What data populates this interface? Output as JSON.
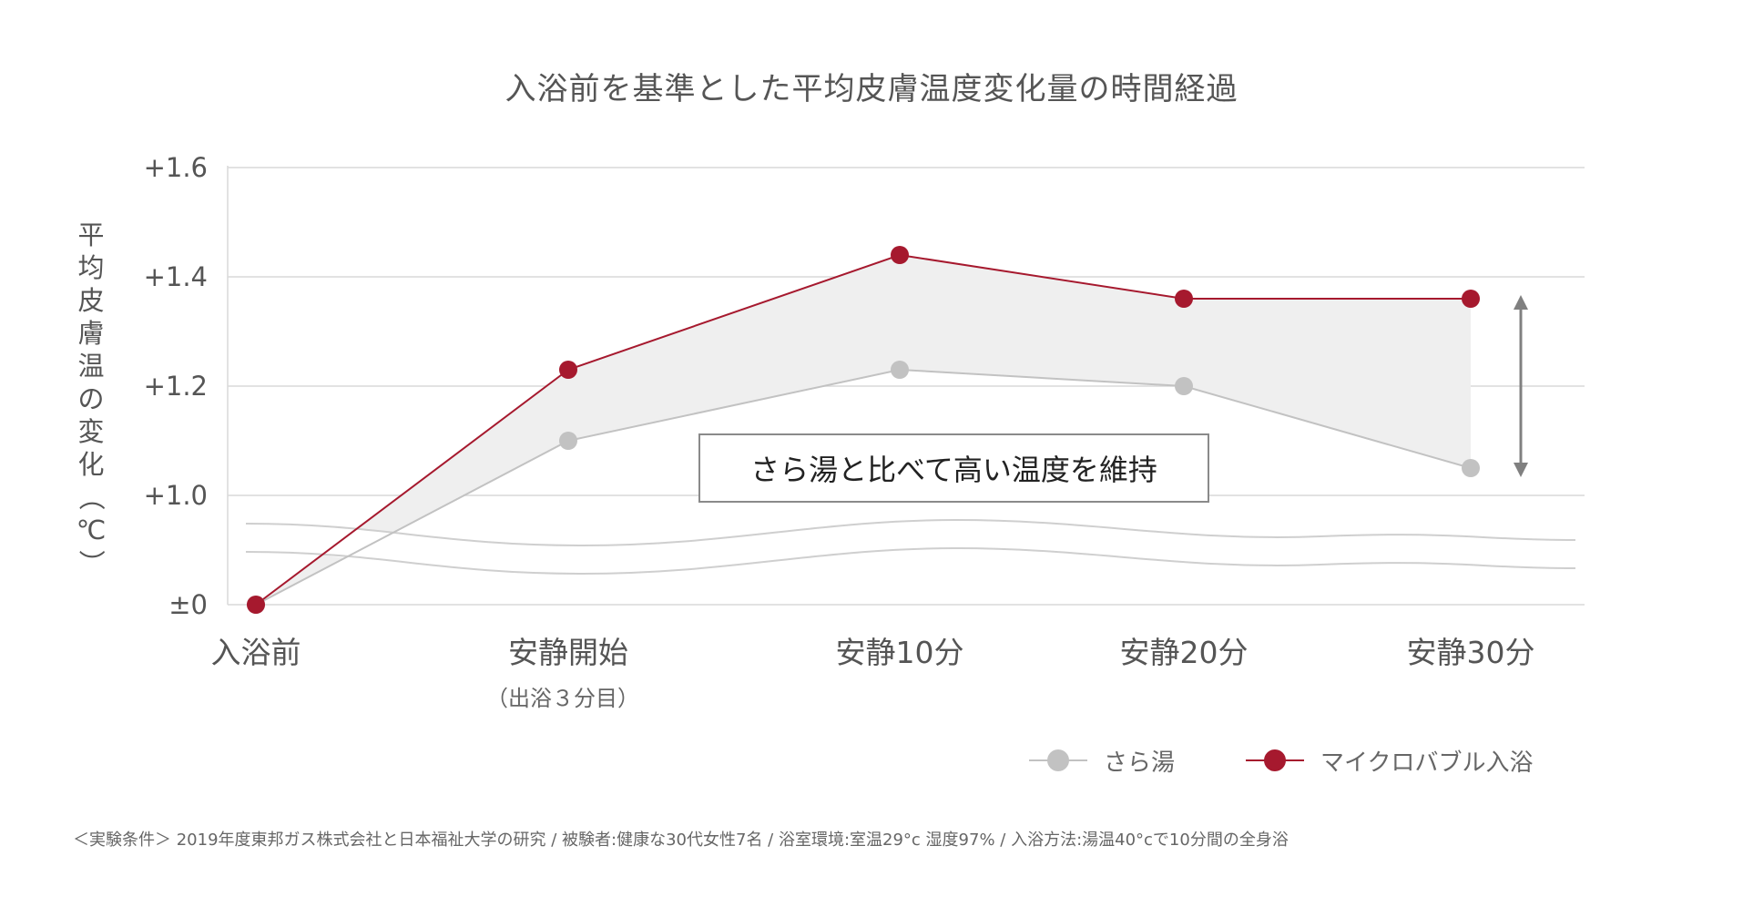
{
  "title": "入浴前を基準とした平均皮膚温度変化量の時間経過",
  "y_axis_label": "平均皮膚温の変化（℃）",
  "callout": "さら湯と比べて高い温度を維持",
  "x_sublabel": "（出浴３分目）",
  "legend": [
    {
      "name": "さら湯",
      "color": "#c2c2c2"
    },
    {
      "name": "マイクロバブル入浴",
      "color": "#a6192e"
    }
  ],
  "footnote": "＜実験条件＞ 2019年度東邦ガス株式会社と日本福祉大学の研究 / 被験者:健康な30代女性7名 / 浴室環境:室温29°c 湿度97% / 入浴方法:湯温40°cで10分間の全身浴",
  "chart_data": {
    "type": "line",
    "title": "入浴前を基準とした平均皮膚温度変化量の時間経過",
    "ylabel": "平均皮膚温の変化（℃）",
    "xlabel": "",
    "categories": [
      "入浴前",
      "安静開始",
      "安静10分",
      "安静20分",
      "安静30分"
    ],
    "y_ticks": [
      "±0",
      "+1.0",
      "+1.2",
      "+1.4",
      "+1.6"
    ],
    "y_tick_values": [
      0,
      1.0,
      1.2,
      1.4,
      1.6
    ],
    "axis_break": true,
    "ylim": [
      0,
      1.6
    ],
    "grid": true,
    "legend_position": "bottom-right",
    "series": [
      {
        "name": "さら湯",
        "color": "#c2c2c2",
        "values": [
          0,
          1.1,
          1.23,
          1.2,
          1.05
        ]
      },
      {
        "name": "マイクロバブル入浴",
        "color": "#a6192e",
        "values": [
          0,
          1.23,
          1.44,
          1.36,
          1.36
        ]
      }
    ]
  }
}
